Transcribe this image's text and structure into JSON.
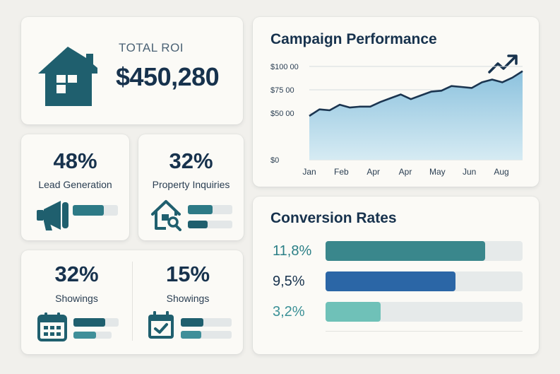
{
  "colors": {
    "background": "#f1f0ec",
    "card": "#fbfaf6",
    "navy": "#17324d",
    "teal": "#2d7a86",
    "blue": "#2b66a6",
    "light_teal": "#6fc1b8",
    "track": "#e3e7e8"
  },
  "roi": {
    "icon": "house-icon",
    "label": "TOTAL ROI",
    "value": "$450,280"
  },
  "stats": {
    "lead": {
      "value": "48%",
      "label": "Lead Generation",
      "icon": "megaphone-icon",
      "progress": 0.68
    },
    "property": {
      "value": "32%",
      "label": "Property Inquiries",
      "icon": "house-search-icon",
      "progress": [
        0.55,
        0.45
      ]
    },
    "showings_a": {
      "value": "32%",
      "label": "Showings",
      "icon": "calendar-icon",
      "progress": [
        0.7,
        0.6
      ]
    },
    "showings_b": {
      "value": "15%",
      "label": "Showings",
      "icon": "calendar-check-icon",
      "progress": [
        0.45,
        0.4
      ]
    }
  },
  "campaign": {
    "title": "Campaign Performance",
    "icon": "trending-up-icon"
  },
  "chart_data": {
    "type": "area",
    "title": "Campaign Performance",
    "x_tick_labels": [
      "Jan",
      "Feb",
      "Apr",
      "Apr",
      "May",
      "Jun",
      "Aug"
    ],
    "y_tick_labels": [
      "$0",
      "$50 00",
      "$75 00",
      "$100 00"
    ],
    "ylim": [
      0,
      100
    ],
    "grid": true,
    "series": [
      {
        "values": [
          47,
          54,
          53,
          59,
          56,
          57,
          57,
          62,
          66,
          70,
          65,
          69,
          73,
          74,
          79,
          78,
          77,
          83,
          86,
          83,
          88,
          95
        ]
      }
    ]
  },
  "conversion": {
    "title": "Conversion Rates",
    "rows": [
      {
        "label": "11,8%",
        "value": 0.81,
        "color": "#3a878c",
        "label_color": "#2b7f86"
      },
      {
        "label": "9,5%",
        "value": 0.66,
        "color": "#2b66a6",
        "label_color": "#17324d"
      },
      {
        "label": "3,2%",
        "value": 0.28,
        "color": "#6fc1b8",
        "label_color": "#3a9096"
      }
    ]
  }
}
